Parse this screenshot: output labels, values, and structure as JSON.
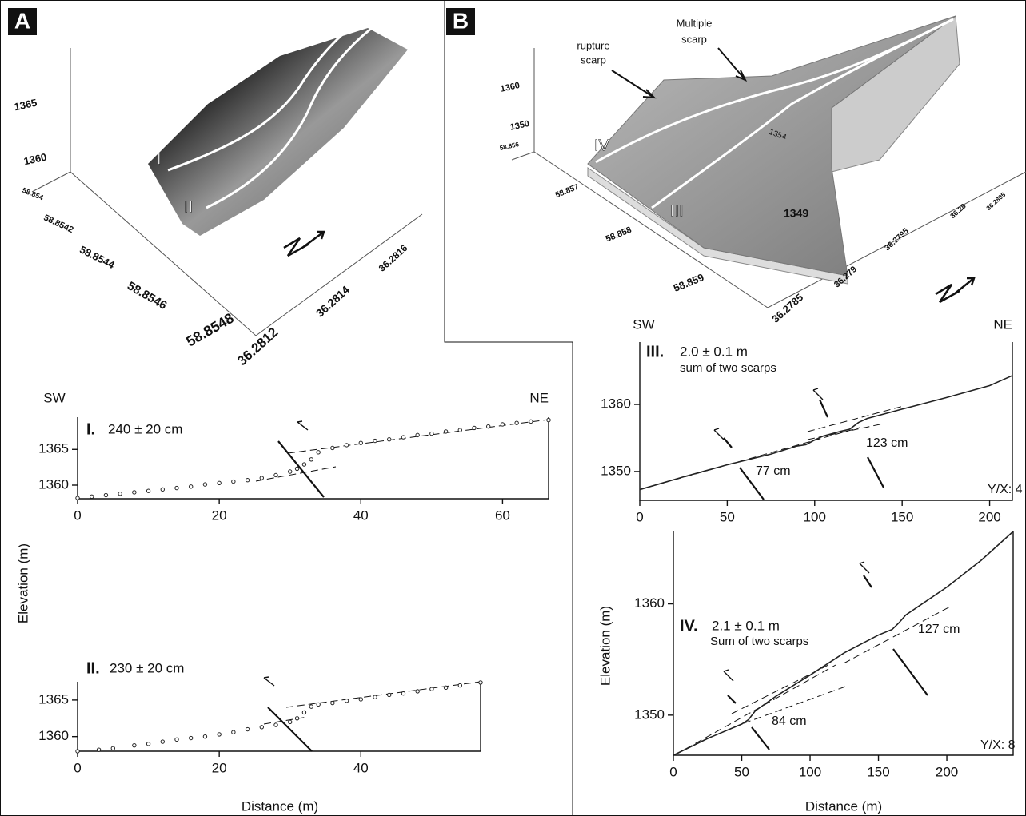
{
  "panel_a": {
    "label": "A",
    "elevation_ticks": [
      "1365",
      "1360"
    ],
    "latitude_ticks": [
      "58.854",
      "58.8542",
      "58.8544",
      "58.8546",
      "58.8548"
    ],
    "longitude_ticks": [
      "36.2812",
      "36.2814",
      "36.2816"
    ],
    "profile_labels": [
      "I",
      "II"
    ]
  },
  "panel_b": {
    "label": "B",
    "elevation_ticks": [
      "1360",
      "1350"
    ],
    "latitude_ticks": [
      "58.856",
      "58.857",
      "58.858",
      "58.859"
    ],
    "longitude_ticks": [
      "36.2785",
      "36.279",
      "36.2795",
      "36.28",
      "36.2805"
    ],
    "profile_labels": [
      "IV",
      "III"
    ],
    "annotations": [
      [
        "rupture",
        "scarp"
      ],
      [
        "Multiple",
        "scarp"
      ]
    ],
    "contour_labels": [
      "1349",
      "1354"
    ]
  },
  "chart_data": [
    {
      "type": "scatter",
      "title": "I.",
      "subtitle": "240 ± 20 cm",
      "directions": [
        "SW",
        "NE"
      ],
      "ylabel": "Elevation (m)",
      "xlim": [
        0,
        66.5
      ],
      "ylim": [
        1358.1,
        1369.5
      ],
      "xticks": [
        0,
        20,
        40,
        60
      ],
      "yticks": [
        1360,
        1365
      ],
      "series": [
        {
          "name": "I",
          "color": "#222",
          "x": [
            0,
            2,
            4,
            6,
            8,
            10,
            12,
            14,
            16,
            18,
            20,
            22,
            24,
            26,
            28,
            30,
            31,
            32,
            33,
            34,
            36,
            38,
            40,
            42,
            44,
            46,
            48,
            50,
            52,
            54,
            56,
            58,
            60,
            62,
            64,
            66.5
          ],
          "values": [
            1358.2,
            1358.4,
            1358.6,
            1358.8,
            1359.0,
            1359.2,
            1359.4,
            1359.6,
            1359.8,
            1360.1,
            1360.3,
            1360.5,
            1360.7,
            1361.0,
            1361.4,
            1361.9,
            1362.3,
            1362.9,
            1363.6,
            1364.6,
            1365.2,
            1365.6,
            1365.9,
            1366.2,
            1366.4,
            1366.7,
            1367.0,
            1367.2,
            1367.5,
            1367.7,
            1368.0,
            1368.2,
            1368.5,
            1368.7,
            1368.9,
            1369.1
          ]
        }
      ]
    },
    {
      "type": "scatter",
      "title": "II.",
      "subtitle": "230 ± 20 cm",
      "xlabel": "Distance (m)",
      "xlim": [
        0,
        56.9
      ],
      "ylim": [
        1358,
        1367.5
      ],
      "xticks": [
        0,
        20,
        40
      ],
      "yticks": [
        1360,
        1365
      ],
      "series": [
        {
          "name": "II",
          "color": "#222",
          "x": [
            0,
            3,
            5,
            8,
            10,
            12,
            14,
            16,
            18,
            20,
            22,
            24,
            26,
            28,
            30,
            31,
            32,
            33,
            34,
            36,
            38,
            40,
            42,
            44,
            46,
            48,
            50,
            52,
            54,
            56.9
          ],
          "values": [
            1358.0,
            1358.2,
            1358.4,
            1358.8,
            1359.0,
            1359.3,
            1359.6,
            1359.8,
            1360.0,
            1360.3,
            1360.6,
            1361.0,
            1361.3,
            1361.6,
            1362.0,
            1362.5,
            1363.3,
            1364.1,
            1364.4,
            1364.6,
            1364.9,
            1365.1,
            1365.4,
            1365.7,
            1365.9,
            1366.2,
            1366.5,
            1366.7,
            1367.0,
            1367.4
          ]
        }
      ]
    },
    {
      "type": "line",
      "title": "III.",
      "subtitle": "2.0 ± 0.1 m",
      "note": "sum of two scarps",
      "directions": [
        "SW",
        "NE"
      ],
      "annotations": [
        "123 cm",
        "77 cm",
        "Y/X: 4"
      ],
      "xlim": [
        0,
        213
      ],
      "ylim": [
        1345.7,
        1369.3
      ],
      "xticks": [
        0,
        50,
        100,
        150,
        200
      ],
      "yticks": [
        1350,
        1360
      ],
      "series": [
        {
          "name": "III",
          "color": "#222",
          "x": [
            0,
            25,
            50,
            75,
            90,
            95,
            100,
            105,
            115,
            120,
            125,
            130,
            150,
            175,
            200,
            213
          ],
          "values": [
            1347.3,
            1349.2,
            1351.0,
            1352.6,
            1353.8,
            1354.0,
            1354.7,
            1355.3,
            1356.0,
            1356.3,
            1357.3,
            1357.9,
            1359.3,
            1361.0,
            1362.8,
            1364.3
          ]
        }
      ]
    },
    {
      "type": "line",
      "title": "IV.",
      "subtitle": "2.1 ± 0.1 m",
      "note": "Sum of two scarps",
      "ylabel": "Elevation (m)",
      "xlabel": "Distance (m)",
      "annotations": [
        "127 cm",
        "84 cm",
        "Y/X: 8"
      ],
      "xlim": [
        0,
        248.5
      ],
      "ylim": [
        1346.4,
        1366.5
      ],
      "xticks": [
        0,
        50,
        100,
        150,
        200
      ],
      "yticks": [
        1350,
        1360
      ],
      "series": [
        {
          "name": "IV",
          "color": "#222",
          "x": [
            0,
            25,
            50,
            55,
            60,
            75,
            100,
            125,
            150,
            160,
            165,
            170,
            200,
            225,
            248.5
          ],
          "values": [
            1346.4,
            1347.9,
            1349.2,
            1349.6,
            1350.4,
            1351.7,
            1353.6,
            1355.6,
            1357.2,
            1357.7,
            1358.3,
            1359.0,
            1361.5,
            1363.9,
            1366.5
          ]
        }
      ]
    }
  ]
}
